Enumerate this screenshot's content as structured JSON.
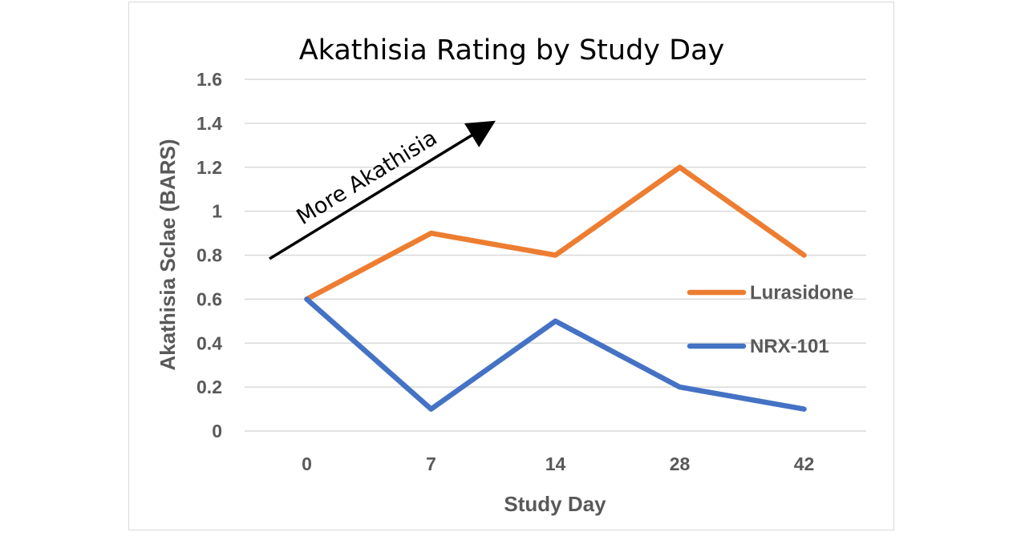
{
  "chart_data": {
    "type": "line",
    "title": "Akathisia Rating by Study Day",
    "xlabel": "Study Day",
    "ylabel": "Akathisia Sclae (BARS)",
    "categories": [
      "0",
      "7",
      "14",
      "28",
      "42"
    ],
    "ylim": [
      0,
      1.6
    ],
    "yticks": [
      "0",
      "0.2",
      "0.4",
      "0.6",
      "0.8",
      "1",
      "1.2",
      "1.4",
      "1.6"
    ],
    "yticks_values": [
      0,
      0.2,
      0.4,
      0.6,
      0.8,
      1,
      1.2,
      1.4,
      1.6
    ],
    "grid": true,
    "legend_position": "right",
    "series": [
      {
        "name": "Lurasidone",
        "values": [
          0.6,
          0.9,
          0.8,
          1.2,
          0.8
        ],
        "color": "#ed7d31"
      },
      {
        "name": "NRX-101",
        "values": [
          0.6,
          0.1,
          0.5,
          0.2,
          0.1
        ],
        "color": "#4472c4"
      }
    ],
    "annotation": {
      "text": "More Akathisia",
      "arrow_color": "#000000"
    }
  }
}
